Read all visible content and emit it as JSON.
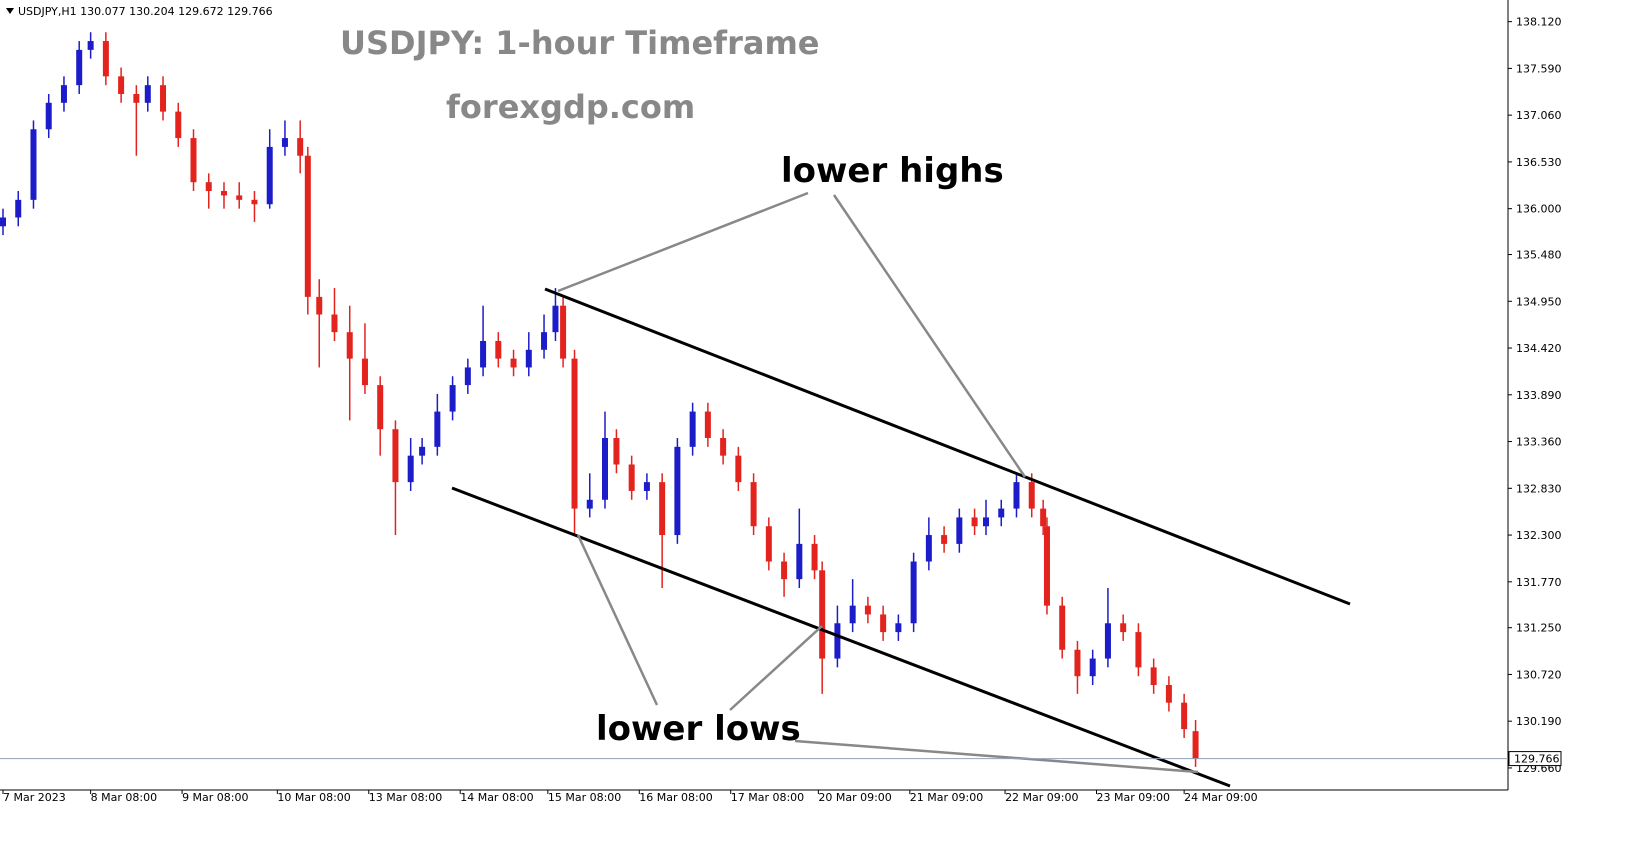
{
  "chart_data": {
    "type": "candlestick",
    "header": "USDJPY,H1  130.077 130.204 129.672 129.766",
    "title": "USDJPY: 1-hour Timeframe",
    "subtitle": "forexgdp.com",
    "annotations": [
      "lower highs",
      "lower lows"
    ],
    "up_color": "#1c1cc8",
    "down_color": "#e3231e",
    "xlim": [
      0,
      395
    ],
    "ylim": [
      129.41,
      138.32
    ],
    "xticks": [
      {
        "value": 0,
        "label": "7 Mar 2023"
      },
      {
        "value": 23,
        "label": "8 Mar 08:00"
      },
      {
        "value": 47,
        "label": "9 Mar 08:00"
      },
      {
        "value": 72,
        "label": "10 Mar 08:00"
      },
      {
        "value": 96,
        "label": "13 Mar 08:00"
      },
      {
        "value": 120,
        "label": "14 Mar 08:00"
      },
      {
        "value": 143,
        "label": "15 Mar 08:00"
      },
      {
        "value": 167,
        "label": "16 Mar 08:00"
      },
      {
        "value": 191,
        "label": "17 Mar 08:00"
      },
      {
        "value": 214,
        "label": "20 Mar 09:00"
      },
      {
        "value": 238,
        "label": "21 Mar 09:00"
      },
      {
        "value": 263,
        "label": "22 Mar 09:00"
      },
      {
        "value": 287,
        "label": "23 Mar 09:00"
      },
      {
        "value": 310,
        "label": "24 Mar 09:00"
      }
    ],
    "yticks": [
      {
        "value": 138.12,
        "label": "138.120"
      },
      {
        "value": 137.59,
        "label": "137.590"
      },
      {
        "value": 137.06,
        "label": "137.060"
      },
      {
        "value": 136.53,
        "label": "136.530"
      },
      {
        "value": 136.0,
        "label": "136.000"
      },
      {
        "value": 135.48,
        "label": "135.480"
      },
      {
        "value": 134.95,
        "label": "134.950"
      },
      {
        "value": 134.42,
        "label": "134.420"
      },
      {
        "value": 133.89,
        "label": "133.890"
      },
      {
        "value": 133.36,
        "label": "133.360"
      },
      {
        "value": 132.83,
        "label": "132.830"
      },
      {
        "value": 132.3,
        "label": "132.300"
      },
      {
        "value": 131.77,
        "label": "131.770"
      },
      {
        "value": 131.25,
        "label": "131.250"
      },
      {
        "value": 130.72,
        "label": "130.720"
      },
      {
        "value": 130.19,
        "label": "130.190"
      },
      {
        "value": 129.66,
        "label": "129.660"
      }
    ],
    "x": [
      0,
      4,
      8,
      12,
      16,
      20,
      23,
      27,
      31,
      35,
      38,
      42,
      46,
      50,
      54,
      58,
      62,
      66,
      70,
      74,
      78,
      80,
      83,
      87,
      91,
      95,
      99,
      103,
      107,
      110,
      114,
      118,
      122,
      126,
      130,
      134,
      138,
      142,
      145,
      147,
      150,
      154,
      158,
      161,
      165,
      169,
      173,
      177,
      181,
      185,
      189,
      193,
      197,
      201,
      205,
      209,
      213,
      215,
      219,
      223,
      227,
      231,
      235,
      239,
      243,
      247,
      251,
      255,
      258,
      262,
      266,
      270,
      273,
      274,
      278,
      282,
      286,
      290,
      294,
      298,
      302,
      306,
      310,
      313
    ],
    "open": [
      135.8,
      135.9,
      136.1,
      136.9,
      137.2,
      137.4,
      137.8,
      137.9,
      137.5,
      137.3,
      137.2,
      137.4,
      137.1,
      136.8,
      136.3,
      136.2,
      136.15,
      136.1,
      136.05,
      136.7,
      136.8,
      136.6,
      135.0,
      134.8,
      134.6,
      134.3,
      134.0,
      133.5,
      132.9,
      133.2,
      133.3,
      133.7,
      134.0,
      134.2,
      134.5,
      134.3,
      134.2,
      134.4,
      134.6,
      134.9,
      134.3,
      132.6,
      132.7,
      133.4,
      133.1,
      132.8,
      132.9,
      132.3,
      133.3,
      133.7,
      133.4,
      133.2,
      132.9,
      132.4,
      132.0,
      131.8,
      132.2,
      131.9,
      130.9,
      131.3,
      131.5,
      131.4,
      131.2,
      131.3,
      132.0,
      132.3,
      132.2,
      132.5,
      132.4,
      132.5,
      132.6,
      132.9,
      132.6,
      132.4,
      131.5,
      131.0,
      130.7,
      130.9,
      131.3,
      131.2,
      130.8,
      130.6,
      130.4,
      130.077
    ],
    "high": [
      136.0,
      136.2,
      137.0,
      137.3,
      137.5,
      137.9,
      138.0,
      138.0,
      137.6,
      137.4,
      137.5,
      137.5,
      137.2,
      136.9,
      136.4,
      136.3,
      136.3,
      136.2,
      136.9,
      137.0,
      137.0,
      136.7,
      135.2,
      135.1,
      134.9,
      134.7,
      134.1,
      133.6,
      133.4,
      133.4,
      133.9,
      134.1,
      134.3,
      134.9,
      134.6,
      134.4,
      134.6,
      134.8,
      135.1,
      135.0,
      134.4,
      133.0,
      133.7,
      133.5,
      133.2,
      133.0,
      133.0,
      133.4,
      133.8,
      133.8,
      133.5,
      133.3,
      133.0,
      132.5,
      132.1,
      132.6,
      132.3,
      132.0,
      131.5,
      131.8,
      131.6,
      131.5,
      131.4,
      132.1,
      132.5,
      132.4,
      132.6,
      132.6,
      132.7,
      132.7,
      133.0,
      133.0,
      132.7,
      132.5,
      131.6,
      131.1,
      131.0,
      131.7,
      131.4,
      131.3,
      130.9,
      130.7,
      130.5,
      130.204
    ],
    "low": [
      135.7,
      135.8,
      136.0,
      136.8,
      137.1,
      137.3,
      137.7,
      137.4,
      137.2,
      136.6,
      137.1,
      137.0,
      136.7,
      136.2,
      136.0,
      136.0,
      136.0,
      135.85,
      136.0,
      136.6,
      136.4,
      134.8,
      134.2,
      134.5,
      133.6,
      133.9,
      133.2,
      132.3,
      132.8,
      133.1,
      133.2,
      133.6,
      133.9,
      134.1,
      134.2,
      134.1,
      134.1,
      134.3,
      134.5,
      134.2,
      132.3,
      132.5,
      132.6,
      133.0,
      132.7,
      132.7,
      131.7,
      132.2,
      133.2,
      133.3,
      133.1,
      132.8,
      132.3,
      131.9,
      131.6,
      131.7,
      131.8,
      130.5,
      130.8,
      131.2,
      131.3,
      131.1,
      131.1,
      131.2,
      131.9,
      132.1,
      132.1,
      132.3,
      132.3,
      132.4,
      132.5,
      132.5,
      132.3,
      131.4,
      130.9,
      130.5,
      130.6,
      130.8,
      131.1,
      130.7,
      130.5,
      130.3,
      130.0,
      129.672
    ],
    "close": [
      135.9,
      136.1,
      136.9,
      137.2,
      137.4,
      137.8,
      137.9,
      137.5,
      137.3,
      137.2,
      137.4,
      137.1,
      136.8,
      136.3,
      136.2,
      136.15,
      136.1,
      136.05,
      136.7,
      136.8,
      136.6,
      135.0,
      134.8,
      134.6,
      134.3,
      134.0,
      133.5,
      132.9,
      133.2,
      133.3,
      133.7,
      134.0,
      134.2,
      134.5,
      134.3,
      134.2,
      134.4,
      134.6,
      134.9,
      134.3,
      132.6,
      132.7,
      133.4,
      133.1,
      132.8,
      132.9,
      132.3,
      133.3,
      133.7,
      133.4,
      133.2,
      132.9,
      132.4,
      132.0,
      131.8,
      132.2,
      131.9,
      130.9,
      131.3,
      131.5,
      131.4,
      131.2,
      131.3,
      132.0,
      132.3,
      132.2,
      132.5,
      132.4,
      132.5,
      132.6,
      132.9,
      132.6,
      132.4,
      131.5,
      131.0,
      130.7,
      130.9,
      131.3,
      131.2,
      130.8,
      130.6,
      130.4,
      130.1,
      129.766
    ]
  }
}
